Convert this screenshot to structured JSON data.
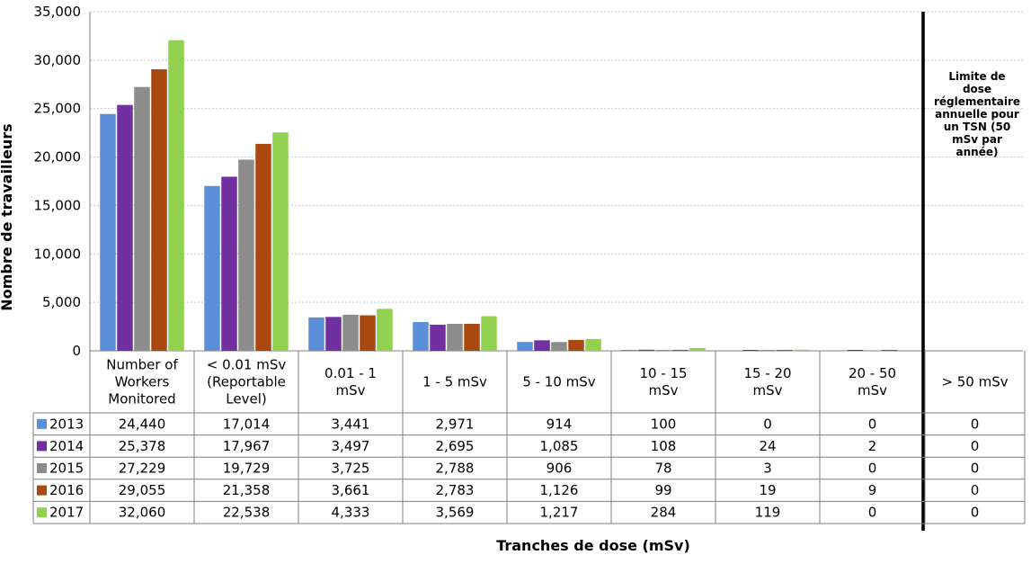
{
  "chart_data": {
    "type": "bar",
    "ylabel": "Nombre de travailleurs",
    "xlabel": "Tranches de dose (mSv)",
    "ylim": [
      0,
      35000
    ],
    "yticks": [
      "0",
      "5,000",
      "10,000",
      "15,000",
      "20,000",
      "25,000",
      "30,000",
      "35,000"
    ],
    "grid": true,
    "categories": [
      [
        "Number of",
        "Workers",
        "Monitored"
      ],
      [
        "< 0.01 mSv",
        "(Reportable",
        "Level)"
      ],
      [
        "0.01 - 1",
        "mSv"
      ],
      [
        "1 - 5 mSv"
      ],
      [
        "5 - 10 mSv"
      ],
      [
        "10 - 15",
        "mSv"
      ],
      [
        "15 - 20",
        "mSv"
      ],
      [
        "20 - 50",
        "mSv"
      ],
      [
        "> 50 mSv"
      ]
    ],
    "series": [
      {
        "name": "2013",
        "color": "#5b8fd9",
        "values": [
          24440,
          17014,
          3441,
          2971,
          914,
          100,
          0,
          0,
          0
        ],
        "labels": [
          "24,440",
          "17,014",
          "3,441",
          "2,971",
          "914",
          "100",
          "0",
          "0",
          "0"
        ]
      },
      {
        "name": "2014",
        "color": "#7030a0",
        "values": [
          25378,
          17967,
          3497,
          2695,
          1085,
          108,
          24,
          2,
          0
        ],
        "labels": [
          "25,378",
          "17,967",
          "3,497",
          "2,695",
          "1,085",
          "108",
          "24",
          "2",
          "0"
        ]
      },
      {
        "name": "2015",
        "color": "#8c8c8c",
        "values": [
          27229,
          19729,
          3725,
          2788,
          906,
          78,
          3,
          0,
          0
        ],
        "labels": [
          "27,229",
          "19,729",
          "3,725",
          "2,788",
          "906",
          "78",
          "3",
          "0",
          "0"
        ]
      },
      {
        "name": "2016",
        "color": "#a9480f",
        "values": [
          29055,
          21358,
          3661,
          2783,
          1126,
          99,
          19,
          9,
          0
        ],
        "labels": [
          "29,055",
          "21,358",
          "3,661",
          "2,783",
          "1,126",
          "99",
          "19",
          "9",
          "0"
        ]
      },
      {
        "name": "2017",
        "color": "#92d050",
        "values": [
          32060,
          22538,
          4333,
          3569,
          1217,
          284,
          119,
          0,
          0
        ],
        "labels": [
          "32,060",
          "22,538",
          "4,333",
          "3,569",
          "1,217",
          "284",
          "119",
          "0",
          "0"
        ]
      }
    ],
    "annotation": [
      "Limite de",
      "dose",
      "réglementaire",
      "annuelle pour",
      "un TSN (50",
      "mSv par",
      "année)"
    ]
  }
}
